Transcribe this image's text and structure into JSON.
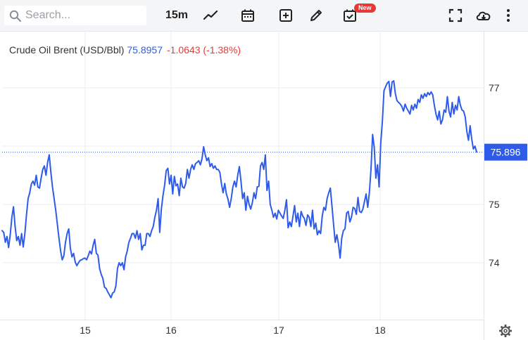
{
  "toolbar": {
    "search_placeholder": "Search...",
    "interval": "15m",
    "new_badge": "New"
  },
  "legend": {
    "symbol": "Crude Oil Brent (USD/Bbl)",
    "price": "75.8957",
    "change": "-1.0643 (-1.38%)"
  },
  "colors": {
    "line": "#2f5bea",
    "price_tag": "#2f5bea",
    "negative": "#e53935"
  },
  "chart_data": {
    "type": "line",
    "series": [
      {
        "values": [
          74.55,
          74.52,
          74.35,
          74.45,
          74.26,
          74.48,
          74.78,
          74.96,
          74.62,
          74.38,
          74.45,
          74.3,
          74.5,
          74.27,
          74.5,
          74.82,
          75.1,
          75.2,
          75.35,
          75.4,
          75.33,
          75.5,
          75.3,
          75.28,
          75.45,
          75.6,
          75.66,
          75.5,
          75.72,
          75.85,
          75.55,
          75.3,
          75.1,
          74.9,
          74.66,
          74.42,
          74.2,
          74.05,
          74.12,
          74.35,
          74.5,
          74.58,
          74.25,
          74.1,
          74.16,
          74.01,
          73.95,
          74.0,
          74.04,
          74.05,
          74.07,
          74.08,
          74.05,
          74.12,
          74.2,
          74.15,
          74.3,
          74.4,
          74.16,
          74.13,
          73.9,
          73.8,
          73.73,
          73.58,
          73.56,
          73.5,
          73.45,
          73.4,
          73.48,
          73.5,
          73.6,
          73.9,
          74.0,
          73.95,
          74.0,
          73.88,
          74.1,
          74.2,
          74.35,
          74.42,
          74.5,
          74.5,
          74.42,
          74.55,
          74.4,
          74.5,
          74.22,
          74.3,
          74.3,
          74.5,
          74.5,
          74.45,
          74.55,
          74.62,
          74.78,
          74.9,
          75.1,
          74.52,
          74.92,
          75.15,
          75.33,
          75.58,
          75.62,
          75.35,
          75.5,
          75.18,
          75.48,
          75.32,
          75.35,
          75.15,
          75.45,
          75.3,
          75.28,
          75.36,
          75.6,
          75.45,
          75.6,
          75.68,
          75.6,
          75.7,
          75.72,
          75.75,
          75.68,
          75.78,
          75.99,
          75.85,
          75.75,
          75.8,
          75.65,
          75.7,
          75.62,
          75.66,
          75.6,
          75.6,
          75.55,
          75.35,
          75.2,
          75.36,
          75.18,
          75.09,
          74.95,
          75.1,
          75.3,
          75.4,
          75.3,
          75.5,
          75.65,
          75.4,
          75.1,
          75.2,
          74.9,
          75.14,
          75.0,
          74.92,
          75.03,
          75.2,
          75.1,
          75.3,
          75.31,
          75.66,
          75.72,
          75.6,
          75.85,
          75.24,
          75.4,
          75.0,
          74.9,
          74.78,
          74.85,
          74.75,
          74.9,
          74.85,
          74.8,
          74.76,
          74.9,
          75.08,
          74.6,
          74.7,
          74.62,
          74.8,
          74.98,
          74.7,
          74.85,
          74.62,
          74.88,
          74.8,
          74.76,
          74.64,
          74.82,
          74.78,
          74.62,
          74.9,
          74.58,
          74.68,
          74.48,
          74.55,
          74.5,
          74.8,
          74.95,
          74.9,
          75.1,
          75.2,
          75.28,
          74.97,
          74.65,
          74.35,
          74.48,
          74.32,
          74.08,
          74.42,
          74.55,
          74.58,
          74.85,
          74.88,
          74.7,
          74.78,
          74.95,
          74.93,
          74.83,
          75.12,
          74.88,
          74.86,
          74.92,
          75.05,
          75.18,
          74.95,
          75.2,
          75.6,
          76.2,
          75.98,
          75.45,
          75.68,
          75.3,
          76.05,
          76.42,
          76.95,
          77.02,
          77.08,
          77.11,
          76.85,
          77.1,
          77.12,
          76.9,
          76.78,
          76.75,
          76.72,
          76.68,
          76.6,
          76.72,
          76.65,
          76.6,
          76.55,
          76.7,
          76.62,
          76.72,
          76.65,
          76.8,
          76.75,
          76.88,
          76.82,
          76.9,
          76.85,
          76.92,
          76.88,
          76.93,
          76.88,
          76.7,
          76.55,
          76.45,
          76.6,
          76.38,
          76.45,
          76.62,
          76.58,
          76.85,
          76.6,
          76.5,
          76.75,
          76.55,
          76.7,
          76.62,
          76.85,
          76.7,
          76.62,
          76.6,
          76.5,
          76.25,
          76.1,
          76.35,
          76.12,
          75.95,
          76.0,
          75.9
        ]
      }
    ],
    "x_tick_labels": [
      "15",
      "16",
      "17",
      "18"
    ],
    "y_ticks": [
      74,
      75,
      77
    ],
    "ylim": [
      73.0,
      78.0
    ],
    "last_price_label": "75.896",
    "grid": true,
    "title": "",
    "xlabel": "",
    "ylabel": ""
  }
}
